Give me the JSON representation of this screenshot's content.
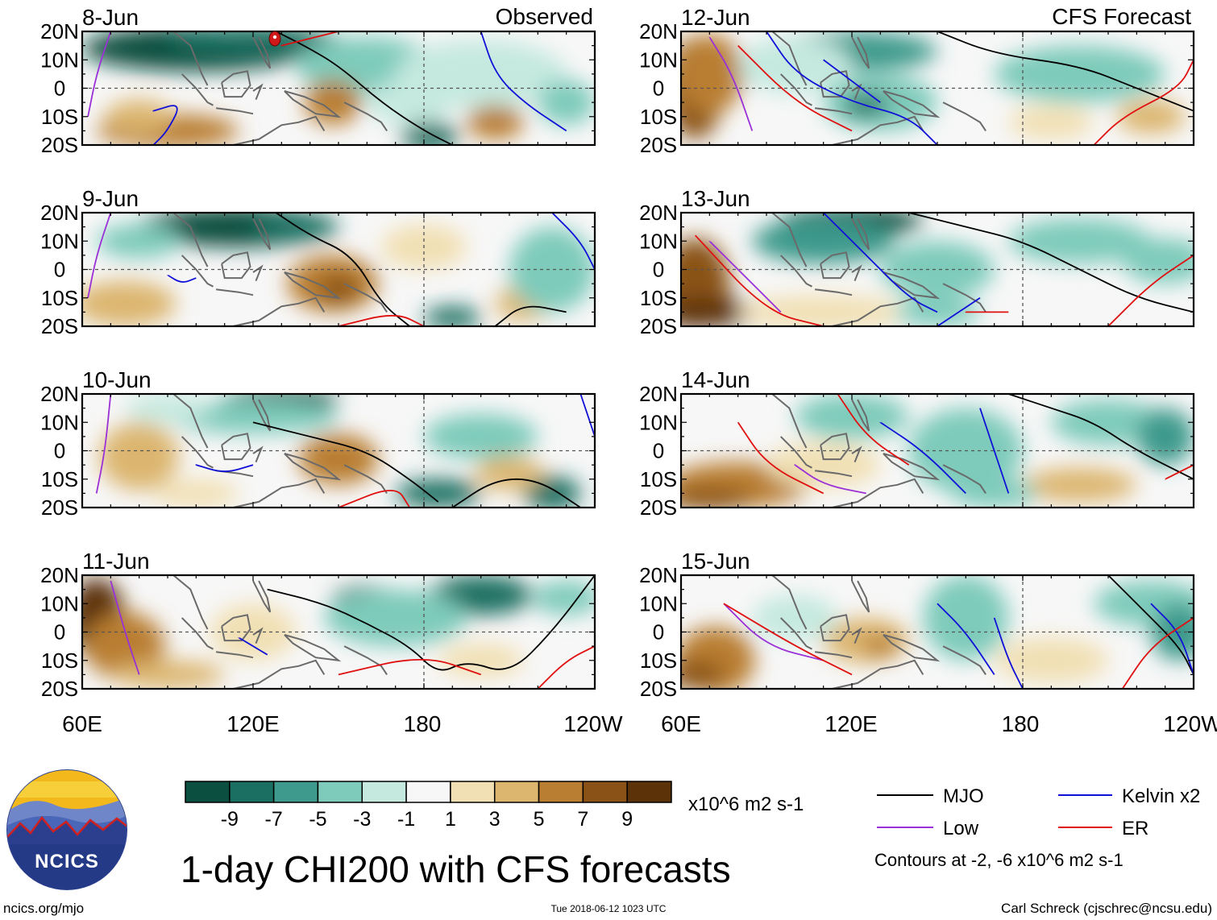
{
  "title": "1-day CHI200 with CFS forecasts",
  "column_headers": {
    "left": "Observed",
    "right": "CFS Forecast"
  },
  "lat_labels": [
    "20N",
    "10N",
    "0",
    "10S",
    "20S"
  ],
  "lon_labels": [
    "60E",
    "120E",
    "180",
    "120W"
  ],
  "panels": {
    "observed": [
      "8-Jun",
      "9-Jun",
      "10-Jun",
      "11-Jun"
    ],
    "forecast": [
      "12-Jun",
      "13-Jun",
      "14-Jun",
      "15-Jun"
    ]
  },
  "colorbar": {
    "labels": [
      "-9",
      "-7",
      "-5",
      "-3",
      "-1",
      "1",
      "3",
      "5",
      "7",
      "9"
    ],
    "colors": [
      "#0b4f41",
      "#1a6f62",
      "#3d9a8c",
      "#7ecbbb",
      "#c5e9df",
      "#f7f7f7",
      "#f1e0b4",
      "#dcb66f",
      "#b97e32",
      "#8a5216",
      "#5c3208"
    ],
    "units": "x10^6 m2 s-1"
  },
  "legend": {
    "items": [
      {
        "label": "MJO",
        "color": "#000000"
      },
      {
        "label": "Kelvin x2",
        "color": "#1010d8"
      },
      {
        "label": "Low",
        "color": "#9b30d8"
      },
      {
        "label": "ER",
        "color": "#e01010"
      }
    ],
    "contours_note": "Contours at -2, -6 x10^6 m2 s-1"
  },
  "logo_text": "NCICS",
  "footer": {
    "website": "ncics.org/mjo",
    "timestamp": "Tue 2018-06-12 1023 UTC",
    "author": "Carl Schreck (cjschrec@ncsu.edu)"
  }
}
